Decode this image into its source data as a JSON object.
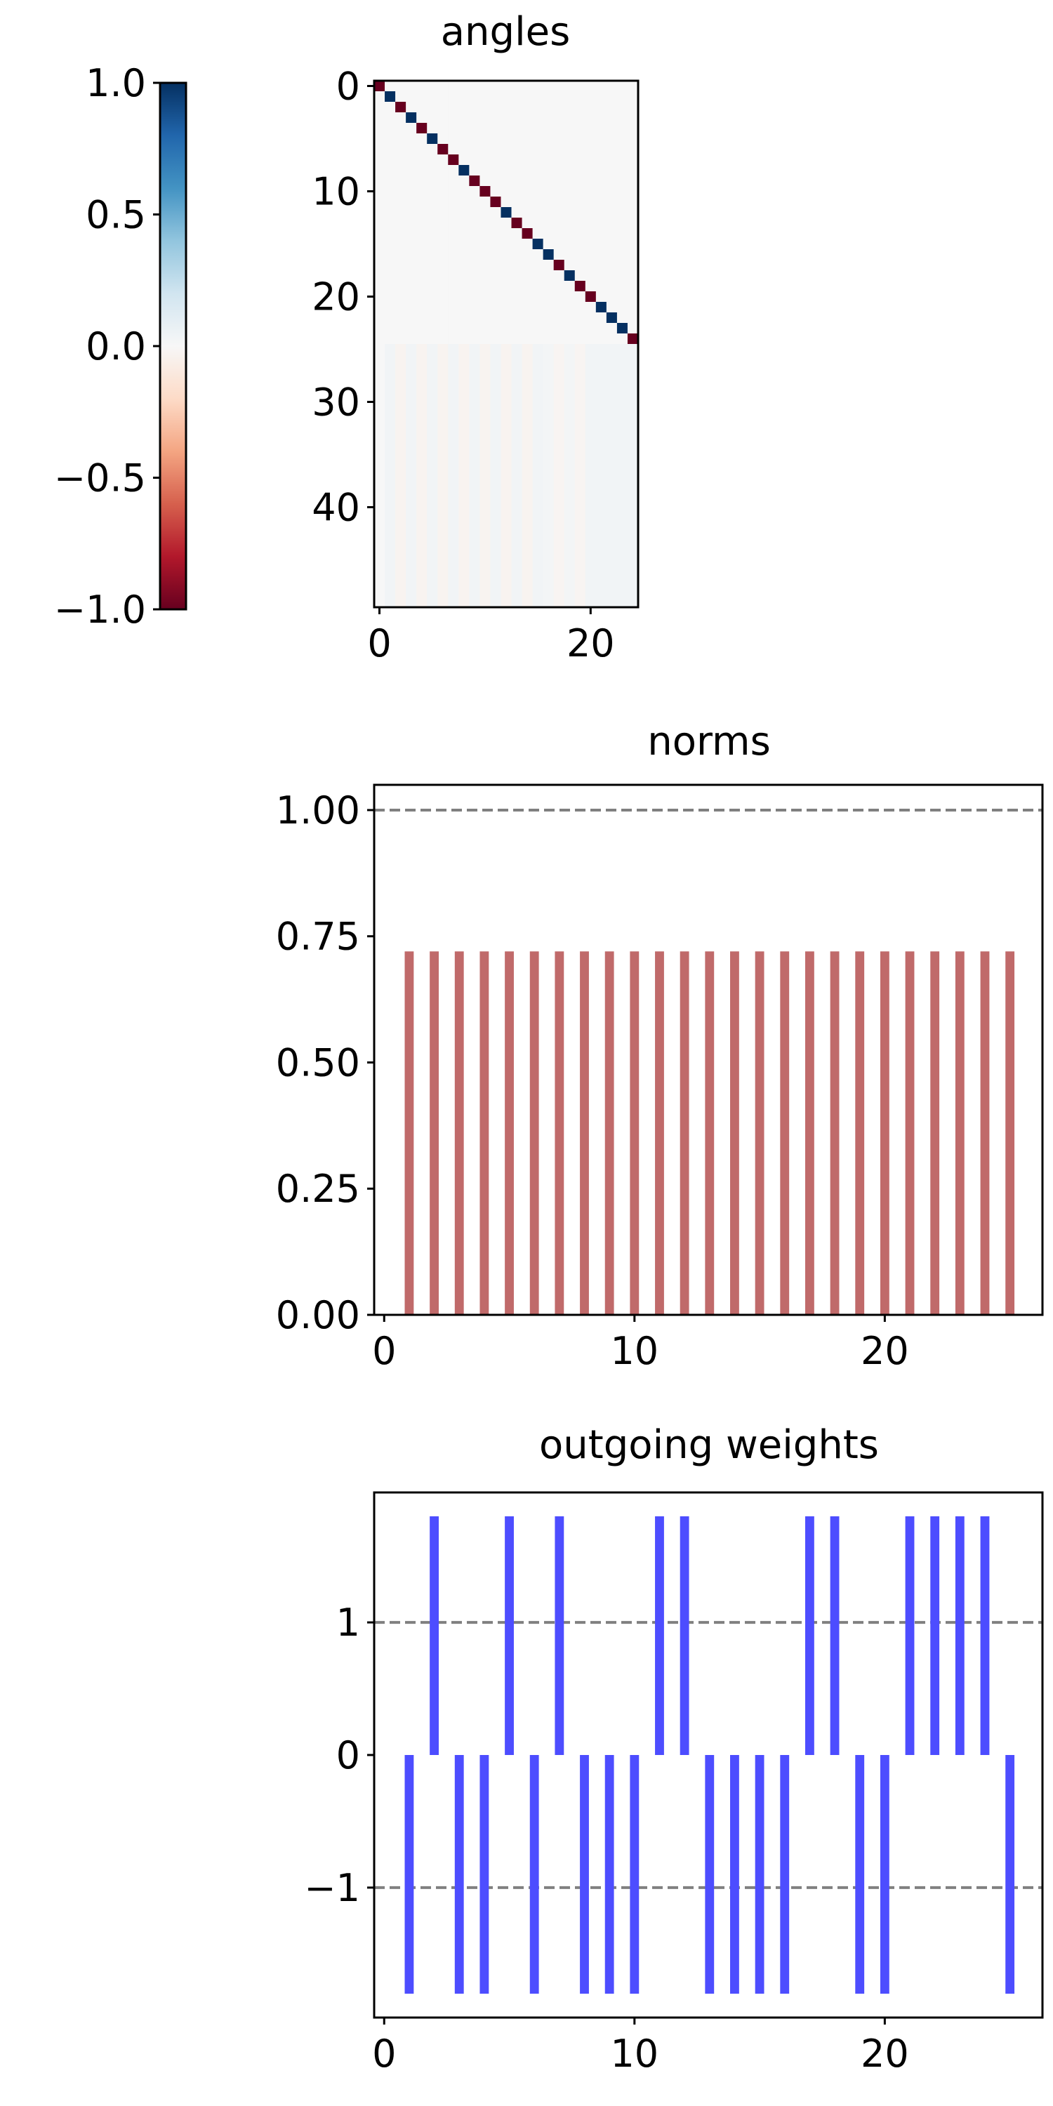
{
  "chart_data": [
    {
      "type": "heatmap",
      "title": "angles",
      "rows": 50,
      "cols": 25,
      "xticks": [
        0,
        20
      ],
      "yticks": [
        0,
        10,
        20,
        30,
        40
      ],
      "diagonal": [
        -1,
        1,
        -1,
        1,
        -1,
        1,
        -1,
        -1,
        1,
        -1,
        -1,
        -1,
        1,
        -1,
        -1,
        1,
        1,
        -1,
        1,
        -1,
        -1,
        1,
        1,
        1,
        -1
      ],
      "lower_block_columns": [
        0,
        0.03,
        -0.03,
        0.03,
        -0.03,
        0.03,
        -0.03,
        0.03,
        -0.03,
        0.03,
        -0.03,
        0.03,
        -0.03,
        0.03,
        -0.03,
        0.03,
        0.02,
        -0.02,
        0.02,
        -0.02,
        0.03,
        0.03,
        0.03,
        0.03,
        0.03
      ],
      "colormap": "RdBu",
      "colorbar": {
        "range": [
          -1.0,
          1.0
        ],
        "ticks": [
          "1.0",
          "0.5",
          "0.0",
          "−0.5",
          "−1.0"
        ],
        "tick_values": [
          1.0,
          0.5,
          0.0,
          -0.5,
          -1.0
        ]
      }
    },
    {
      "type": "bar",
      "title": "norms",
      "x": [
        1,
        2,
        3,
        4,
        5,
        6,
        7,
        8,
        9,
        10,
        11,
        12,
        13,
        14,
        15,
        16,
        17,
        18,
        19,
        20,
        21,
        22,
        23,
        24,
        25
      ],
      "values": [
        0.72,
        0.72,
        0.72,
        0.72,
        0.72,
        0.72,
        0.72,
        0.72,
        0.72,
        0.72,
        0.72,
        0.72,
        0.72,
        0.72,
        0.72,
        0.72,
        0.72,
        0.72,
        0.72,
        0.72,
        0.72,
        0.72,
        0.72,
        0.72,
        0.72
      ],
      "color": "#c06a6a",
      "ylim": [
        0,
        1.05
      ],
      "xlim": [
        -0.4,
        26.3
      ],
      "xticks": [
        0,
        10,
        20
      ],
      "yticks": [
        "0.00",
        "0.25",
        "0.50",
        "0.75",
        "1.00"
      ],
      "ytick_values": [
        0,
        0.25,
        0.5,
        0.75,
        1.0
      ],
      "hlines": [
        1.0
      ]
    },
    {
      "type": "bar",
      "title": "outgoing weights",
      "x": [
        1,
        2,
        3,
        4,
        5,
        6,
        7,
        8,
        9,
        10,
        11,
        12,
        13,
        14,
        15,
        16,
        17,
        18,
        19,
        20,
        21,
        22,
        23,
        24,
        25
      ],
      "values": [
        -1.8,
        1.8,
        -1.8,
        -1.8,
        1.8,
        -1.8,
        1.8,
        -1.8,
        -1.8,
        -1.8,
        1.8,
        1.8,
        -1.8,
        -1.8,
        -1.8,
        -1.8,
        1.8,
        1.8,
        -1.8,
        -1.8,
        1.8,
        1.8,
        1.8,
        1.8,
        -1.8
      ],
      "color": "#4d4dff",
      "ylim": [
        -1.98,
        1.98
      ],
      "xlim": [
        -0.4,
        26.3
      ],
      "xticks": [
        0,
        10,
        20
      ],
      "yticks": [
        "1",
        "0",
        "−1"
      ],
      "ytick_values": [
        1,
        0,
        -1
      ],
      "hlines": [
        1,
        -1
      ]
    }
  ]
}
